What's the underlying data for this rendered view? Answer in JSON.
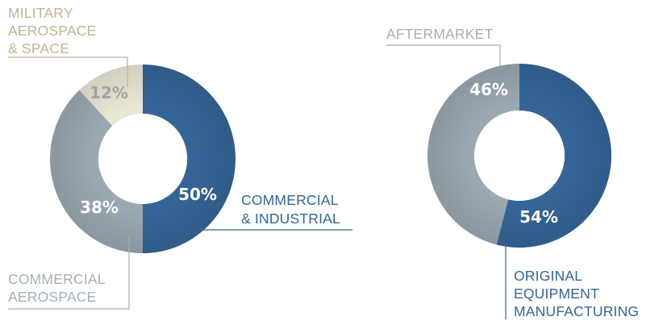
{
  "chart_data": [
    {
      "type": "pie",
      "variant": "donut",
      "slices": [
        {
          "key": "ci",
          "label_lines": [
            "COMMERCIAL",
            "& INDUSTRIAL"
          ],
          "value": 50,
          "value_label": "50%",
          "color": "#356597",
          "value_text_color": "#ffffff"
        },
        {
          "key": "ca",
          "label_lines": [
            "COMMERCIAL",
            "AEROSPACE"
          ],
          "value": 38,
          "value_label": "38%",
          "color": "#9aa8b1",
          "value_text_color": "#ffffff"
        },
        {
          "key": "mas",
          "label_lines": [
            "MILITARY",
            "AEROSPACE",
            "& SPACE"
          ],
          "value": 12,
          "value_label": "12%",
          "color": "#e9e6d4",
          "value_text_color": "#a3a3a3"
        }
      ]
    },
    {
      "type": "pie",
      "variant": "donut",
      "slices": [
        {
          "key": "oem",
          "label_lines": [
            "ORIGINAL",
            "EQUIPMENT",
            "MANUFACTURING"
          ],
          "value": 54,
          "value_label": "54%",
          "color": "#356597",
          "value_text_color": "#ffffff"
        },
        {
          "key": "am",
          "label_lines": [
            "AFTERMARKET"
          ],
          "value": 46,
          "value_label": "46%",
          "color": "#9aa8b1",
          "value_text_color": "#ffffff"
        }
      ]
    }
  ],
  "colors": {
    "blue_label": "#356597",
    "gray_label": "#a3b0b8",
    "tan_label": "#c2b490"
  }
}
